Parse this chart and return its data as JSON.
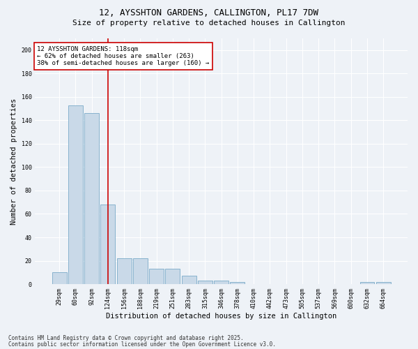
{
  "title_line1": "12, AYSSHTON GARDENS, CALLINGTON, PL17 7DW",
  "title_line2": "Size of property relative to detached houses in Callington",
  "xlabel": "Distribution of detached houses by size in Callington",
  "ylabel": "Number of detached properties",
  "categories": [
    "29sqm",
    "60sqm",
    "92sqm",
    "124sqm",
    "156sqm",
    "188sqm",
    "219sqm",
    "251sqm",
    "283sqm",
    "315sqm",
    "346sqm",
    "378sqm",
    "410sqm",
    "442sqm",
    "473sqm",
    "505sqm",
    "537sqm",
    "569sqm",
    "600sqm",
    "632sqm",
    "664sqm"
  ],
  "values": [
    10,
    153,
    146,
    68,
    22,
    22,
    13,
    13,
    7,
    3,
    3,
    2,
    0,
    0,
    0,
    0,
    0,
    0,
    0,
    2,
    2
  ],
  "bar_color": "#c9d9e8",
  "bar_edge_color": "#7aaac8",
  "vline_color": "#cc0000",
  "vline_pos": 3.5,
  "ylim": [
    0,
    210
  ],
  "yticks": [
    0,
    20,
    40,
    60,
    80,
    100,
    120,
    140,
    160,
    180,
    200
  ],
  "annotation_box_text": "12 AYSSHTON GARDENS: 118sqm\n← 62% of detached houses are smaller (263)\n38% of semi-detached houses are larger (160) →",
  "annotation_box_color": "#cc0000",
  "annotation_box_bg": "#ffffff",
  "footer_line1": "Contains HM Land Registry data © Crown copyright and database right 2025.",
  "footer_line2": "Contains public sector information licensed under the Open Government Licence v3.0.",
  "bg_color": "#eef2f7",
  "plot_bg_color": "#eef2f7",
  "grid_color": "#ffffff",
  "title_fontsize": 9,
  "subtitle_fontsize": 8,
  "tick_fontsize": 6,
  "label_fontsize": 7.5,
  "footer_fontsize": 5.5,
  "annotation_fontsize": 6.5
}
